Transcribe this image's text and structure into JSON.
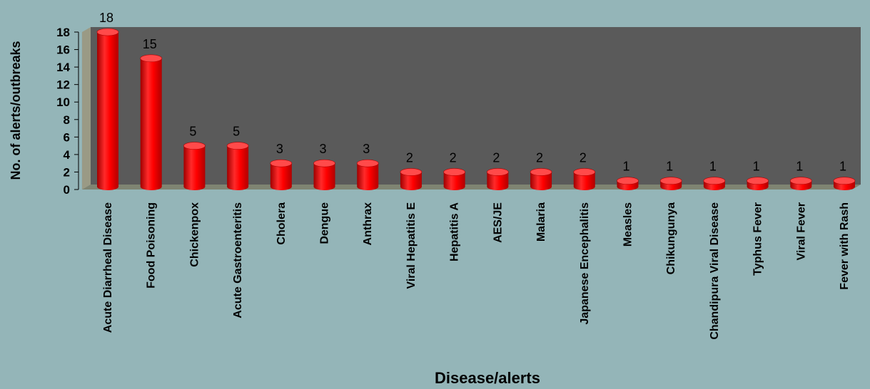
{
  "chart_data": {
    "type": "bar",
    "xlabel": "Disease/alerts",
    "ylabel": "No. of alerts/outbreaks",
    "ylim": [
      0,
      18
    ],
    "yticks": [
      0,
      2,
      4,
      6,
      8,
      10,
      12,
      14,
      16,
      18
    ],
    "categories": [
      "Acute Diarrheal Disease",
      "Food Poisoning",
      "Chickenpox",
      "Acute Gastroenteritis",
      "Cholera",
      "Dengue",
      "Anthrax",
      "Viral Hepatitis E",
      "Hepatitis A",
      "AES/JE",
      "Malaria",
      "Japanese Encephalitis",
      "Measles",
      "Chikungunya",
      "Chandipura Viral Disease",
      "Typhus Fever",
      "Viral Fever",
      "Fever with Rash"
    ],
    "values": [
      18,
      15,
      5,
      5,
      3,
      3,
      3,
      2,
      2,
      2,
      2,
      2,
      1,
      1,
      1,
      1,
      1,
      1
    ],
    "grid": false,
    "legend": "none",
    "colors": {
      "background": "#94b5b8",
      "plot_wall": "#5a5a5a",
      "side_wall": "#9a9a85",
      "floor": "#7f8472",
      "bar": "#ff0000",
      "bar_dark": "#b00000",
      "bar_top": "#ff4a4a"
    }
  }
}
